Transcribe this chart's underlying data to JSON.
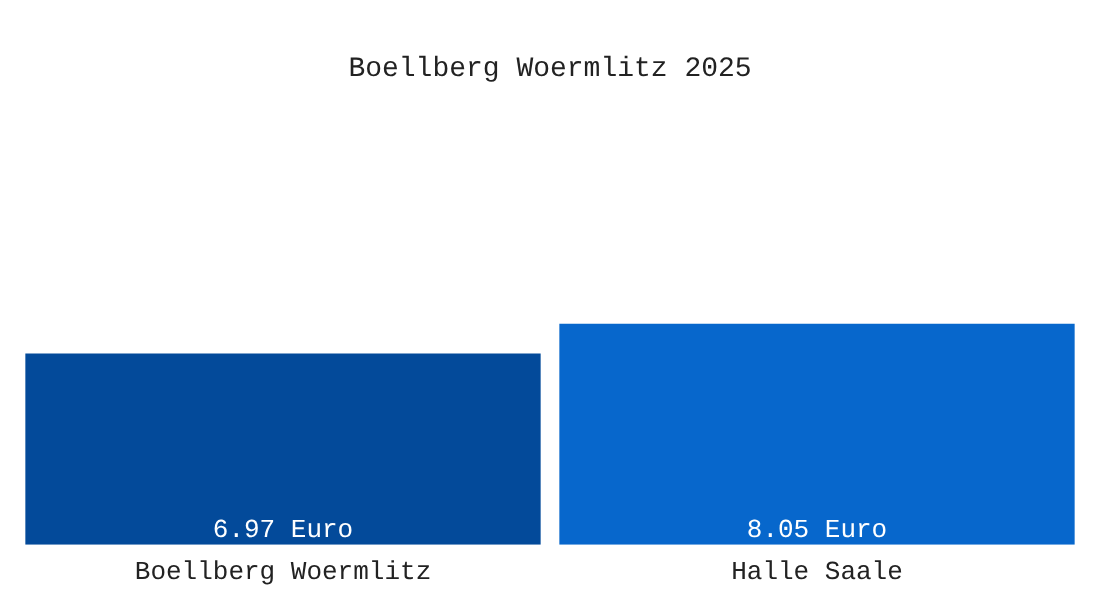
{
  "chart_data": {
    "type": "bar",
    "title": "Boellberg Woermlitz 2025",
    "categories": [
      "Boellberg Woermlitz",
      "Halle Saale"
    ],
    "values": [
      6.97,
      8.05
    ],
    "colors": [
      "#034a9a",
      "#0767cc"
    ],
    "value_labels": [
      "6.97 Euro",
      "8.05 Euro"
    ],
    "grid": false,
    "legend": false
  }
}
